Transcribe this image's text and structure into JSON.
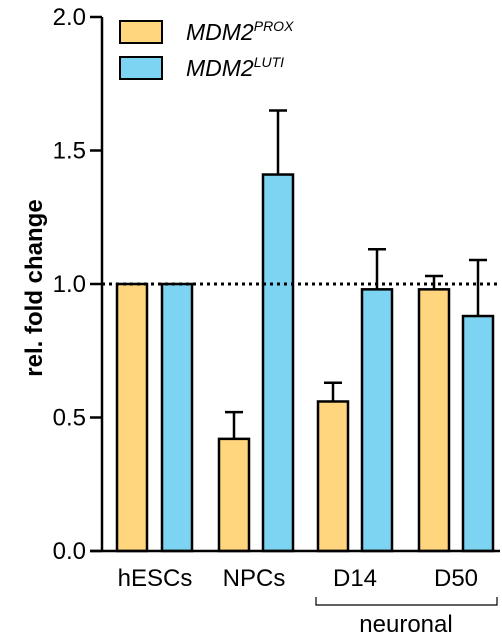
{
  "chart_data": {
    "type": "bar",
    "title": "",
    "xlabel": "",
    "ylabel": "rel. fold change",
    "ylim": [
      0,
      2.0
    ],
    "yticks": [
      "0.0",
      "0.5",
      "1.0",
      "1.5",
      "2.0"
    ],
    "categories": [
      "hESCs",
      "NPCs",
      "D14",
      "D50"
    ],
    "group_label": "neuronal",
    "reference_line": 1.0,
    "legend_position": "top-left",
    "grid": false,
    "series": [
      {
        "name_base": "MDM2",
        "name_sup": "PROX",
        "color": "#FFD57E",
        "values": [
          1.0,
          0.42,
          0.56,
          0.98
        ],
        "errors": [
          0.0,
          0.1,
          0.07,
          0.05
        ]
      },
      {
        "name_base": "MDM2",
        "name_sup": "LUTI",
        "color": "#7DD3F2",
        "values": [
          1.0,
          1.41,
          0.98,
          0.88
        ],
        "errors": [
          0.0,
          0.24,
          0.15,
          0.21
        ]
      }
    ]
  }
}
